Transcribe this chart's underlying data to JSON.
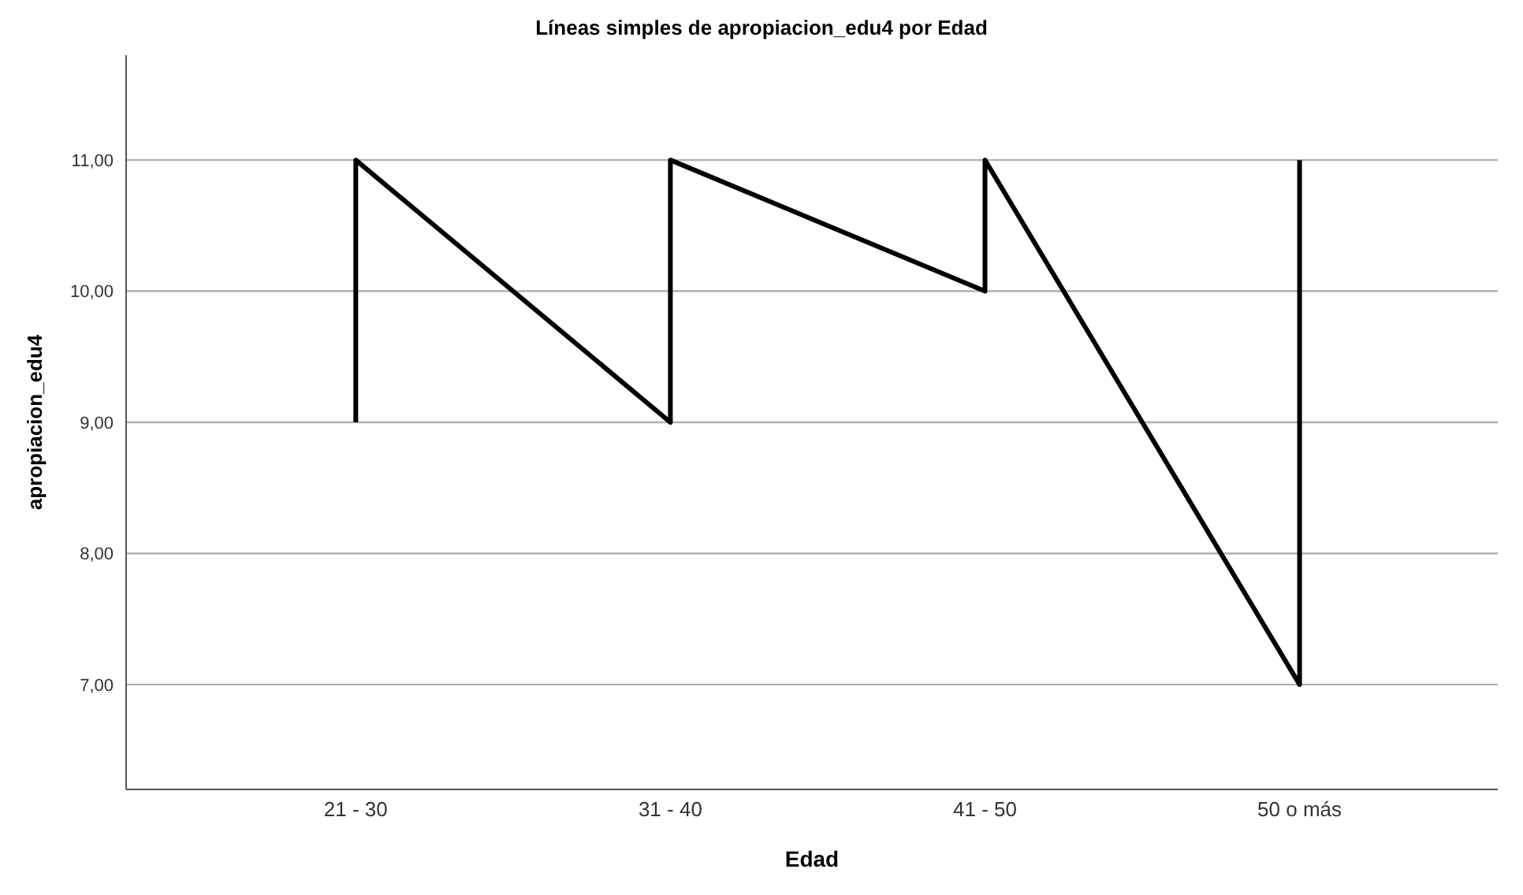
{
  "chart_data": {
    "type": "line",
    "title": "Líneas simples de apropiacion_edu4 por Edad",
    "xlabel": "Edad",
    "ylabel": "apropiacion_edu4",
    "categories": [
      "21 - 30",
      "31 - 40",
      "41 - 50",
      "50 o más"
    ],
    "series": [
      {
        "color": "#000000",
        "x": [
          "21 - 30",
          "21 - 30",
          "31 - 40",
          "31 - 40",
          "41 - 50",
          "41 - 50",
          "50 o más",
          "50 o más"
        ],
        "values": [
          9,
          11,
          9,
          11,
          10,
          11,
          7,
          11
        ]
      }
    ],
    "ylim": [
      6.2,
      11.8
    ],
    "yticks": [
      {
        "value": 7,
        "label": "7,00"
      },
      {
        "value": 8,
        "label": "8,00"
      },
      {
        "value": 9,
        "label": "9,00"
      },
      {
        "value": 10,
        "label": "10,00"
      },
      {
        "value": 11,
        "label": "11,00"
      }
    ],
    "grid": "y",
    "marker": "none",
    "line_style": "solid"
  }
}
